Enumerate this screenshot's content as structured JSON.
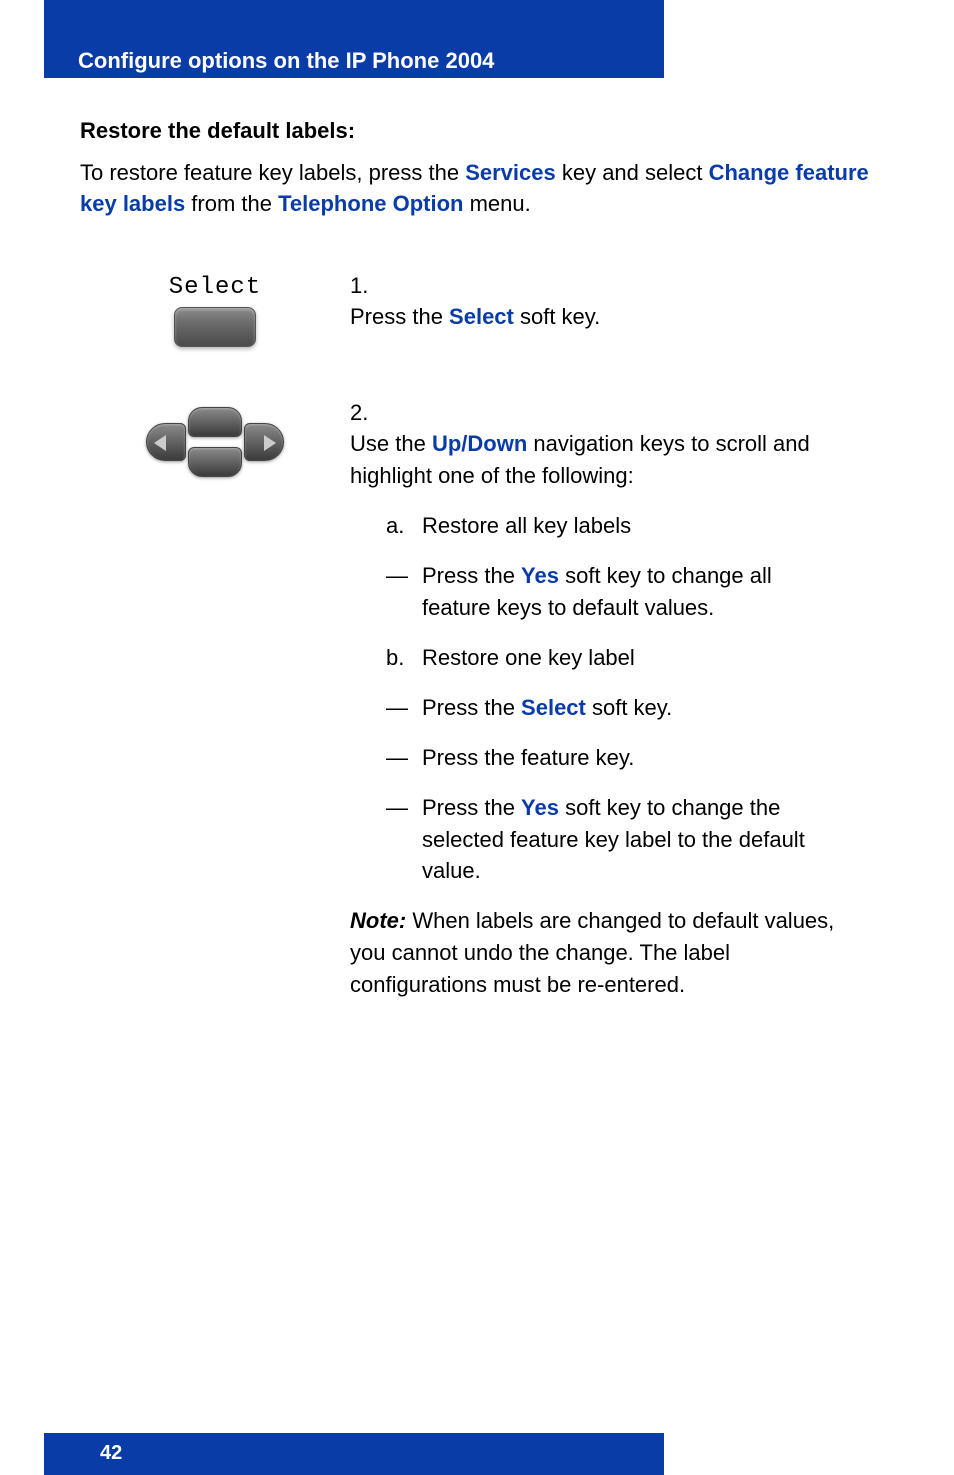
{
  "colors": {
    "brand_blue": "#0a3ca8",
    "white": "#ffffff",
    "black": "#000000",
    "button_gradient_top": "#8a8a8a",
    "button_gradient_bottom": "#4a4a4a"
  },
  "typography": {
    "body_fontsize_pt": 16,
    "heading_fontsize_pt": 16,
    "header_bar_fontsize_pt": 16
  },
  "header": {
    "title": "Configure options on the IP Phone  2004"
  },
  "section": {
    "heading": "Restore the default labels:",
    "intro_pre": "To restore feature key labels, press the ",
    "kw_services": "Services",
    "intro_mid1": " key and select ",
    "kw_change": "Change feature key labels",
    "intro_mid2": " from the ",
    "kw_telopt": "Telephone Option",
    "intro_post": " menu."
  },
  "step1": {
    "marker": "1.",
    "pre": "Press the ",
    "kw": "Select",
    "post": " soft key.",
    "button_label": "Select"
  },
  "step2": {
    "marker": "2.",
    "pre": "Use the ",
    "kw": "Up/Down",
    "post": " navigation keys to scroll and highlight one of the following:",
    "items": {
      "a_marker": "a.",
      "a_text": "Restore all key labels",
      "a_dash_marker": "—",
      "a_dash_pre": "Press the ",
      "a_dash_kw": "Yes",
      "a_dash_post": " soft key to change all feature keys to default values.",
      "b_marker": "b.",
      "b_text": "Restore one key label",
      "b_dash1_marker": "—",
      "b_dash1_pre": "Press the ",
      "b_dash1_kw": "Select",
      "b_dash1_post": " soft key.",
      "b_dash2_marker": "—",
      "b_dash2_text": "Press the feature key.",
      "b_dash3_marker": "—",
      "b_dash3_pre": "Press the ",
      "b_dash3_kw": "Yes",
      "b_dash3_post": " soft key to change the selected feature key label to the default value."
    },
    "note_label": "Note:",
    "note_text": " When labels are changed to default values, you cannot undo the change. The label configurations must be re-entered."
  },
  "footer": {
    "page_number": "42"
  }
}
